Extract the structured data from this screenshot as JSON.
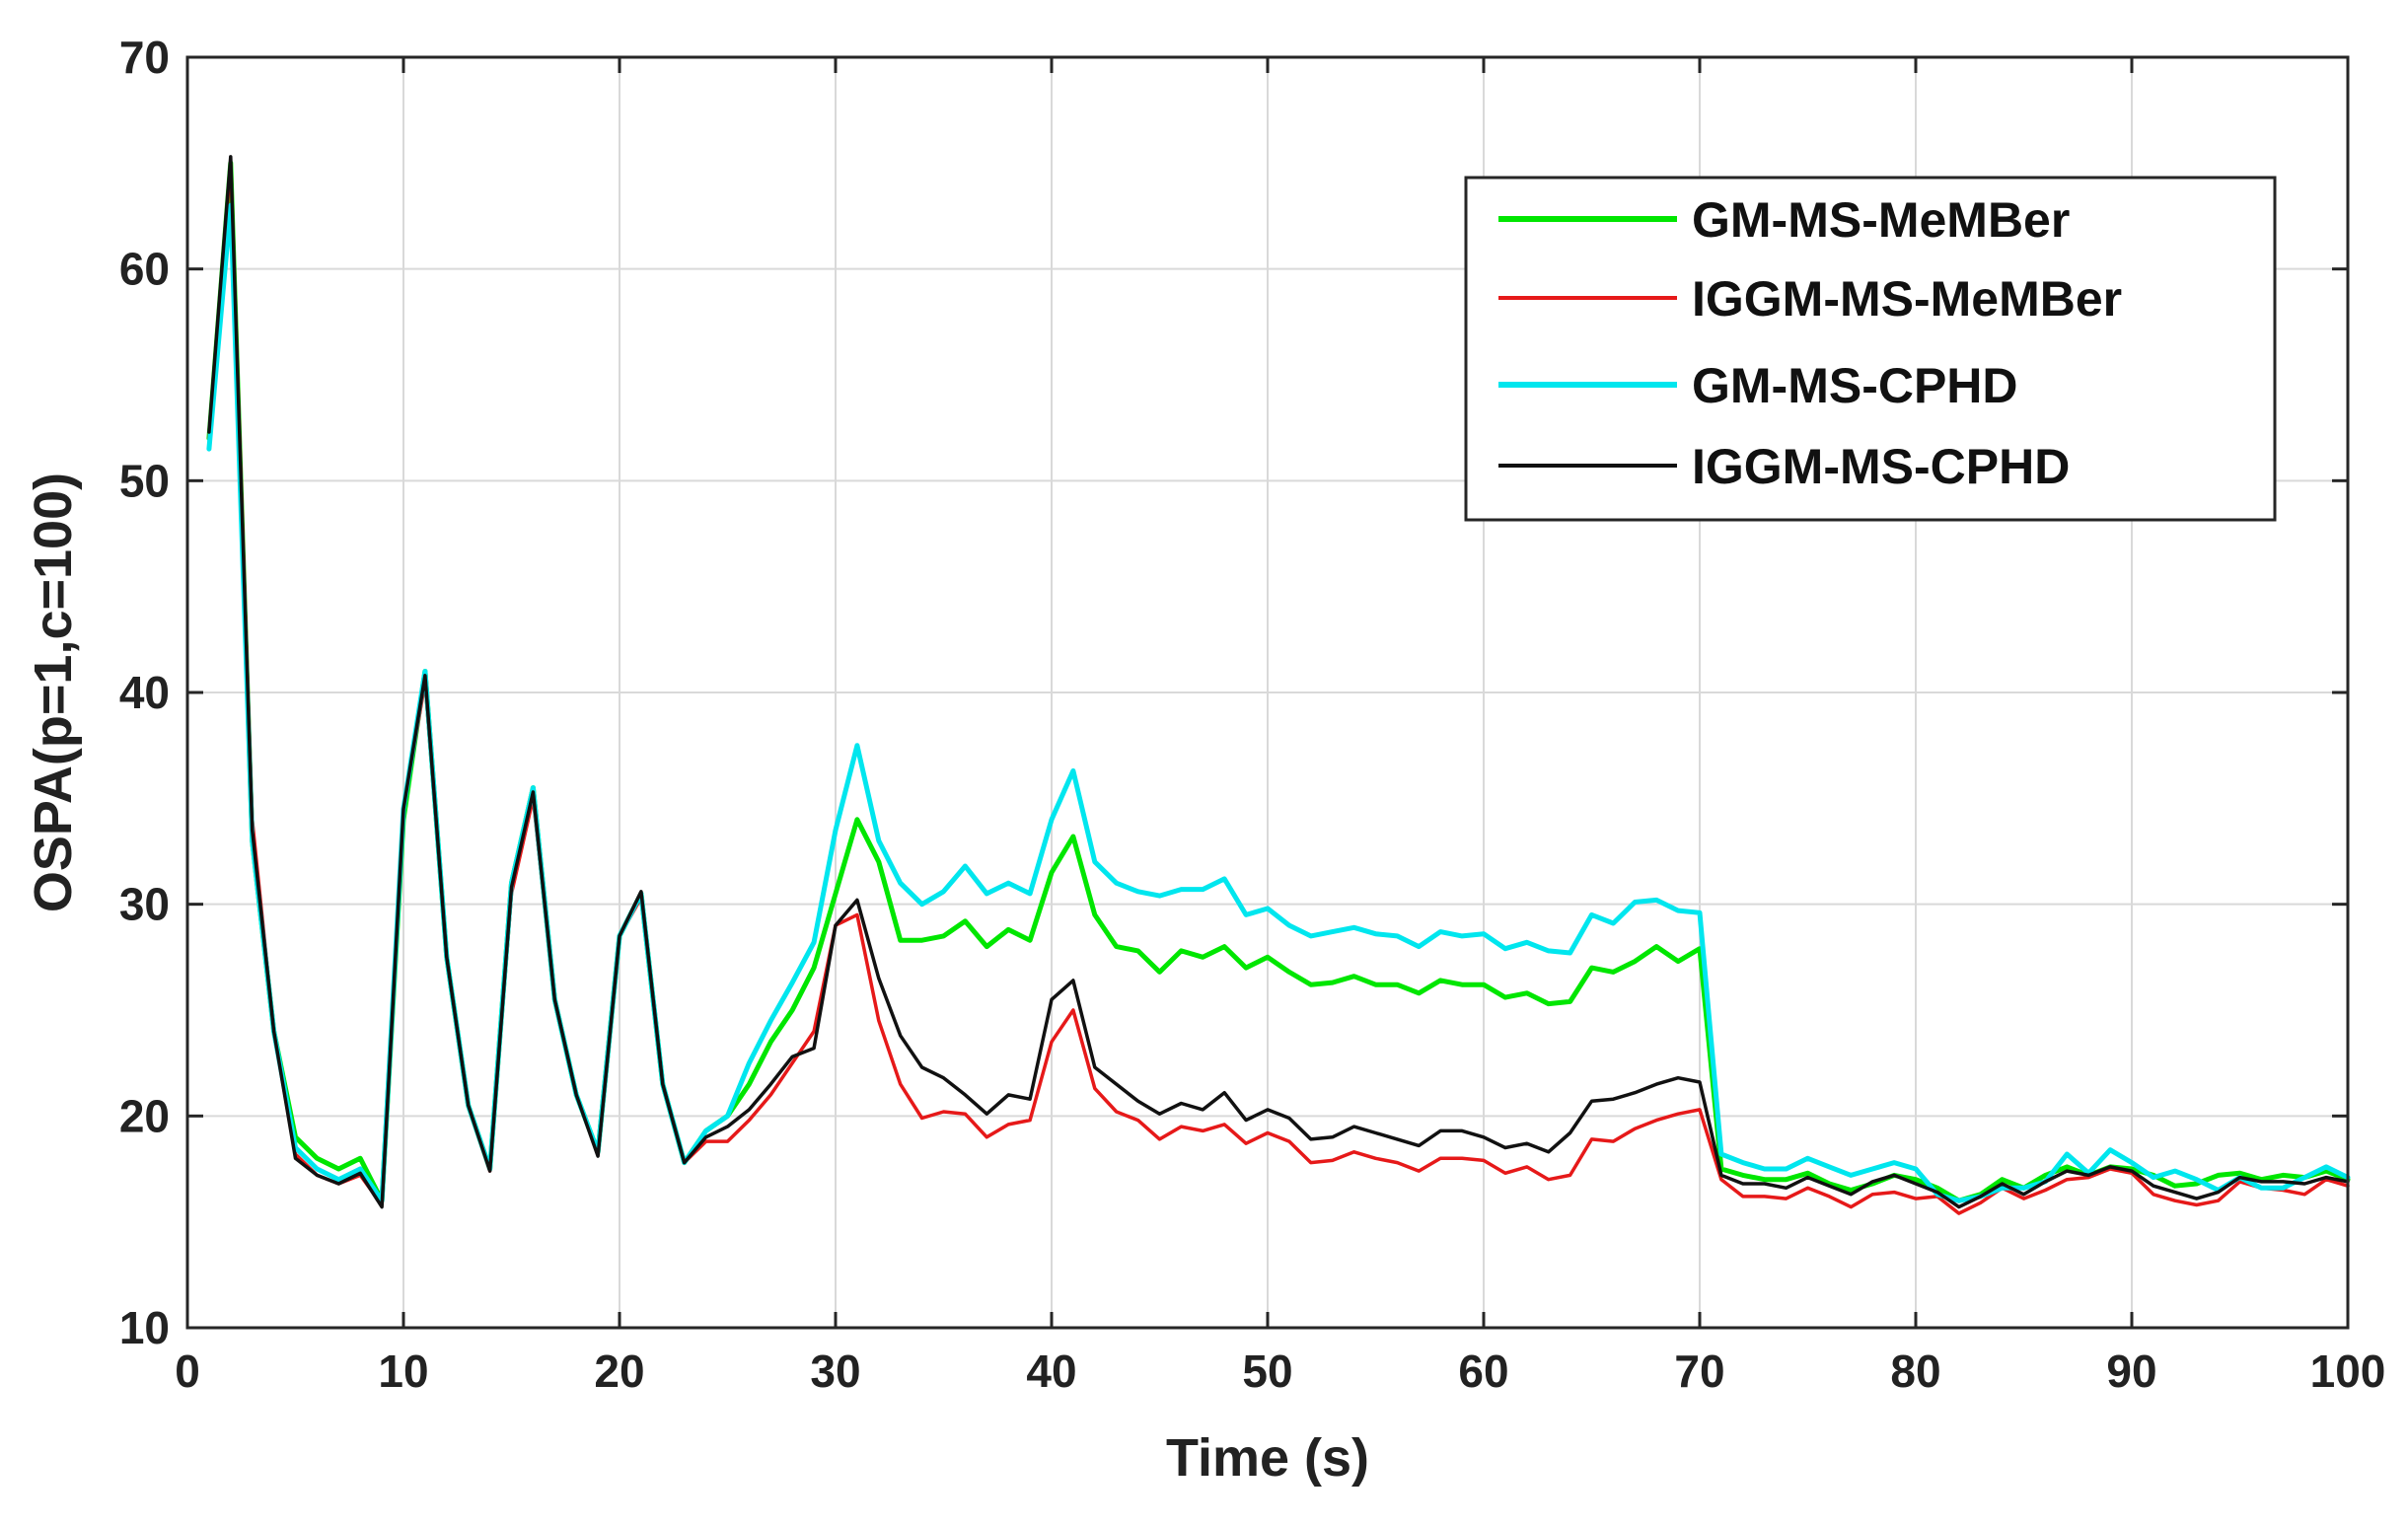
{
  "chart_data": {
    "type": "line",
    "title": "",
    "xlabel": "Time (s)",
    "ylabel": "OSPA(p=1,c=100)",
    "xlim": [
      0,
      100
    ],
    "ylim": [
      10,
      70
    ],
    "xticks": [
      0,
      10,
      20,
      30,
      40,
      50,
      60,
      70,
      80,
      90,
      100
    ],
    "yticks": [
      10,
      20,
      30,
      40,
      50,
      60,
      70
    ],
    "grid": true,
    "legend_position": "top-right",
    "x": [
      1,
      2,
      3,
      4,
      5,
      6,
      7,
      8,
      9,
      10,
      11,
      12,
      13,
      14,
      15,
      16,
      17,
      18,
      19,
      20,
      21,
      22,
      23,
      24,
      25,
      26,
      27,
      28,
      29,
      30,
      31,
      32,
      33,
      34,
      35,
      36,
      37,
      38,
      39,
      40,
      41,
      42,
      43,
      44,
      45,
      46,
      47,
      48,
      49,
      50,
      51,
      52,
      53,
      54,
      55,
      56,
      57,
      58,
      59,
      60,
      61,
      62,
      63,
      64,
      65,
      66,
      67,
      68,
      69,
      70,
      71,
      72,
      73,
      74,
      75,
      76,
      77,
      78,
      79,
      80,
      81,
      82,
      83,
      84,
      85,
      86,
      87,
      88,
      89,
      90,
      91,
      92,
      93,
      94,
      95,
      96,
      97,
      98,
      99,
      100
    ],
    "series": [
      {
        "name": "GM-MS-MeMBer",
        "color": "#00e600",
        "values": [
          52,
          65,
          33,
          24,
          19,
          18,
          17.5,
          18,
          16,
          34,
          41,
          27.5,
          20.5,
          17.5,
          31,
          35.5,
          25.5,
          21,
          18.3,
          28.5,
          30.5,
          21.5,
          17.8,
          19.3,
          20,
          21.5,
          23.5,
          25,
          27,
          30.5,
          34,
          32,
          28.3,
          28.3,
          28.5,
          29.2,
          28,
          28.8,
          28.3,
          31.5,
          33.2,
          29.5,
          28,
          27.8,
          26.8,
          27.8,
          27.5,
          28,
          27,
          27.5,
          26.8,
          26.2,
          26.3,
          26.6,
          26.2,
          26.2,
          25.8,
          26.4,
          26.2,
          26.2,
          25.6,
          25.8,
          25.3,
          25.4,
          27,
          26.8,
          27.3,
          28,
          27.3,
          27.9,
          17.5,
          17.2,
          17,
          17,
          17.3,
          16.8,
          16.5,
          16.8,
          17.2,
          17,
          16.6,
          16,
          16.3,
          17,
          16.6,
          17.2,
          17.6,
          17.2,
          17.6,
          17.5,
          17.2,
          16.7,
          16.8,
          17.2,
          17.3,
          17,
          17.2,
          17.1,
          17.4,
          17
        ]
      },
      {
        "name": "IGGM-MS-MeMBer",
        "color": "#e61919",
        "values": [
          52,
          65,
          34,
          24,
          18.2,
          17.2,
          16.8,
          17.2,
          15.8,
          34.5,
          40.5,
          27.5,
          20.5,
          17.4,
          30.5,
          35,
          25.5,
          21,
          18.2,
          28.5,
          30.3,
          21.5,
          17.8,
          18.8,
          18.8,
          19.8,
          21,
          22.5,
          24,
          29,
          29.5,
          24.5,
          21.5,
          19.9,
          20.2,
          20.1,
          19,
          19.6,
          19.8,
          23.5,
          25,
          21.3,
          20.2,
          19.8,
          18.9,
          19.5,
          19.3,
          19.6,
          18.7,
          19.2,
          18.8,
          17.8,
          17.9,
          18.3,
          18,
          17.8,
          17.4,
          18,
          18,
          17.9,
          17.3,
          17.6,
          17,
          17.2,
          18.9,
          18.8,
          19.4,
          19.8,
          20.1,
          20.3,
          17,
          16.2,
          16.2,
          16.1,
          16.6,
          16.2,
          15.7,
          16.3,
          16.4,
          16.1,
          16.2,
          15.4,
          15.9,
          16.6,
          16.1,
          16.5,
          17,
          17.1,
          17.5,
          17.3,
          16.3,
          16,
          15.8,
          16,
          16.9,
          16.6,
          16.5,
          16.3,
          17,
          16.7
        ]
      },
      {
        "name": "GM-MS-CPHD",
        "color": "#00e6ee",
        "values": [
          51.5,
          63,
          33,
          24,
          18.5,
          17.5,
          17,
          17.5,
          16,
          34.5,
          41,
          27.5,
          20.5,
          17.5,
          31,
          35.5,
          25.5,
          21,
          18.3,
          28.5,
          30.5,
          21.5,
          17.8,
          19.3,
          20,
          22.5,
          24.5,
          26.3,
          28.2,
          33.5,
          37.5,
          33,
          31,
          30,
          30.6,
          31.8,
          30.5,
          31,
          30.5,
          34,
          36.3,
          32,
          31,
          30.6,
          30.4,
          30.7,
          30.7,
          31.2,
          29.5,
          29.8,
          29,
          28.5,
          28.7,
          28.9,
          28.6,
          28.5,
          28,
          28.7,
          28.5,
          28.6,
          27.9,
          28.2,
          27.8,
          27.7,
          29.5,
          29.1,
          30.1,
          30.2,
          29.7,
          29.6,
          18.2,
          17.8,
          17.5,
          17.5,
          18,
          17.6,
          17.2,
          17.5,
          17.8,
          17.5,
          16.3,
          16,
          16.2,
          16.6,
          16.6,
          16.9,
          18.2,
          17.3,
          18.4,
          17.8,
          17.1,
          17.4,
          17,
          16.5,
          17.1,
          16.6,
          16.6,
          17.1,
          17.6,
          17.1
        ]
      },
      {
        "name": "IGGM-MS-CPHD",
        "color": "#111111",
        "values": [
          52.3,
          65.3,
          33.5,
          24,
          18,
          17.2,
          16.8,
          17.3,
          15.7,
          34.5,
          40.8,
          27.5,
          20.5,
          17.4,
          30.8,
          35.3,
          25.5,
          21,
          18.1,
          28.5,
          30.6,
          21.5,
          17.8,
          19,
          19.5,
          20.3,
          21.5,
          22.8,
          23.2,
          29,
          30.2,
          26.5,
          23.8,
          22.3,
          21.8,
          21,
          20.1,
          21,
          20.8,
          25.5,
          26.4,
          22.3,
          21.5,
          20.7,
          20.1,
          20.6,
          20.3,
          21.1,
          19.8,
          20.3,
          19.9,
          18.9,
          19,
          19.5,
          19.2,
          18.9,
          18.6,
          19.3,
          19.3,
          19,
          18.5,
          18.7,
          18.3,
          19.2,
          20.7,
          20.8,
          21.1,
          21.5,
          21.8,
          21.6,
          17.2,
          16.8,
          16.8,
          16.6,
          17.1,
          16.7,
          16.3,
          16.9,
          17.2,
          16.8,
          16.4,
          15.7,
          16.2,
          16.8,
          16.3,
          16.9,
          17.4,
          17.2,
          17.6,
          17.4,
          16.7,
          16.4,
          16.1,
          16.4,
          17.1,
          16.9,
          16.9,
          16.8,
          17.1,
          16.9
        ]
      }
    ]
  }
}
